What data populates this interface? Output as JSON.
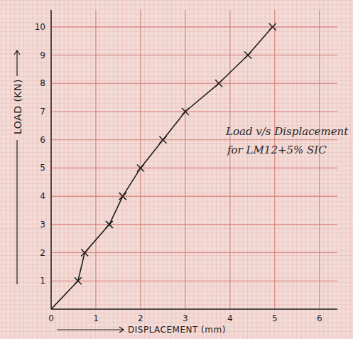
{
  "chart_data": {
    "type": "line",
    "annotations": [
      "Load v/s Displacement",
      "for LM12+5% SIC"
    ],
    "x_label": "DISPLACEMENT (mm)",
    "y_label": "LOAD (KN)",
    "x": [
      0,
      0.6,
      0.75,
      1.3,
      1.6,
      2,
      2.5,
      3,
      3.75,
      4.4,
      4.95
    ],
    "values": [
      0,
      1,
      2,
      3,
      4,
      5,
      6,
      7,
      8,
      9,
      10
    ],
    "color": "#1c1c1c",
    "marker": "x",
    "line_style": "solid",
    "xlim": [
      0,
      6.4
    ],
    "ylim": [
      0,
      10.6
    ],
    "xticks": [
      0,
      1,
      2,
      3,
      4,
      5,
      6
    ],
    "yticks": [
      1,
      2,
      3,
      4,
      5,
      6,
      7,
      8,
      9,
      10
    ],
    "grid": true
  }
}
